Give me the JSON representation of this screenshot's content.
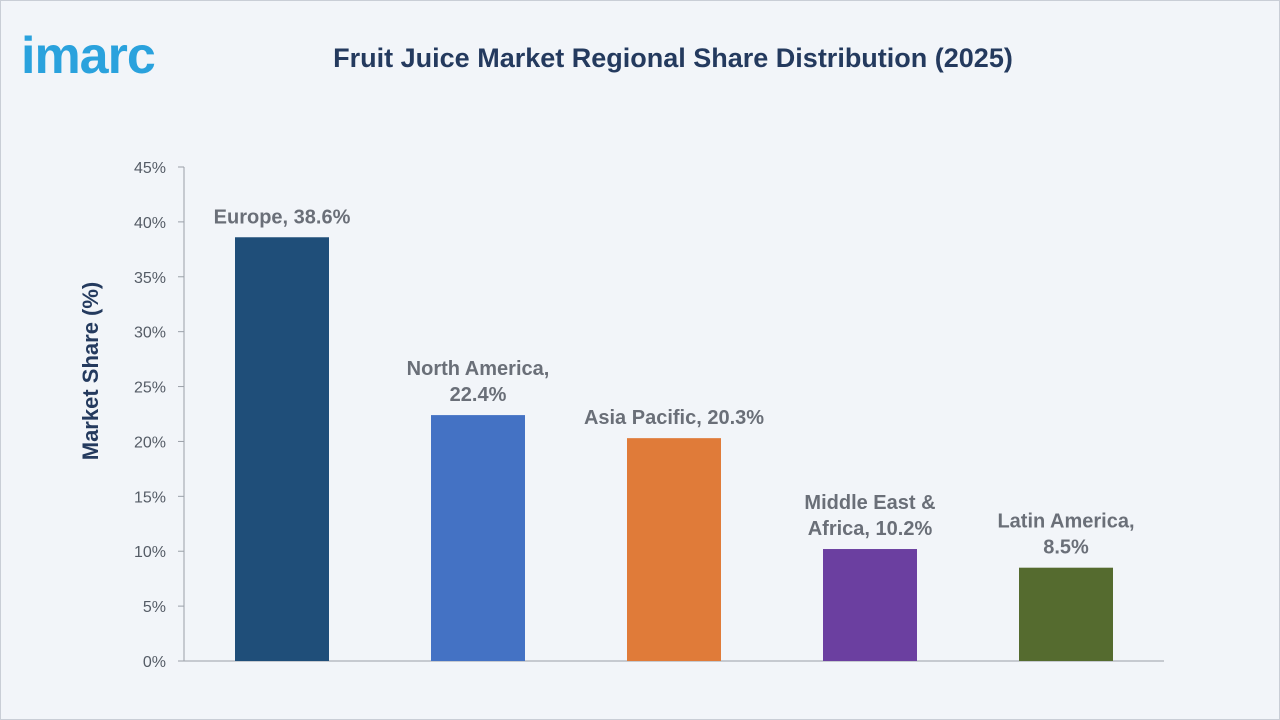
{
  "brand": {
    "logo_text": "imarc",
    "logo_color": "#2aa2dd"
  },
  "chart_data": {
    "type": "bar",
    "title": "Fruit Juice Market Regional Share Distribution (2025)",
    "ylabel": "Market Share (%)",
    "xlabel": "",
    "ylim": [
      0,
      45
    ],
    "yticks": [
      0,
      5,
      10,
      15,
      20,
      25,
      30,
      35,
      40,
      45
    ],
    "ytick_labels": [
      "0%",
      "5%",
      "10%",
      "15%",
      "20%",
      "25%",
      "30%",
      "35%",
      "40%",
      "45%"
    ],
    "grid": false,
    "categories": [
      "Europe",
      "North America",
      "Asia Pacific",
      "Middle East & Africa",
      "Latin America"
    ],
    "values": [
      38.6,
      22.4,
      20.3,
      10.2,
      8.5
    ],
    "data_labels": [
      [
        "Europe, 38.6%"
      ],
      [
        "North America,",
        "22.4%"
      ],
      [
        "Asia Pacific, 20.3%"
      ],
      [
        "Middle East &",
        "Africa, 10.2%"
      ],
      [
        "Latin America,",
        "8.5%"
      ]
    ],
    "colors": [
      "#1f4e79",
      "#4472c4",
      "#e07b39",
      "#6b3fa0",
      "#556b2f"
    ]
  }
}
